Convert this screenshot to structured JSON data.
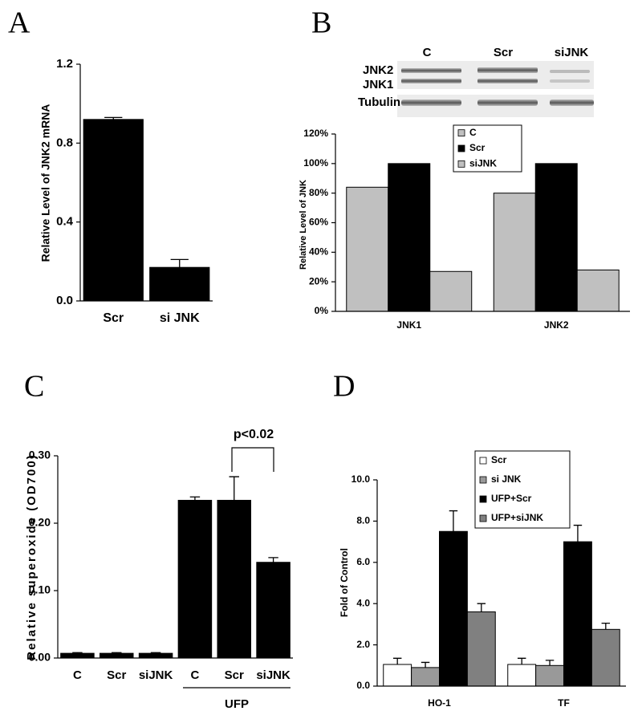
{
  "chart_data": [
    {
      "type": "bar",
      "panel": "A",
      "ylabel": "Relative Level of JNK2 mRNA",
      "categories": [
        "Scr",
        "si JNK"
      ],
      "values": [
        0.92,
        0.17
      ],
      "errors": [
        0.01,
        0.04
      ],
      "color": "#000000",
      "ylim": [
        0,
        1.2
      ],
      "yticks": [
        {
          "value": 0,
          "label": "0.0"
        },
        0.4,
        0.8,
        1.2
      ]
    },
    {
      "type": "bar",
      "panel": "B",
      "ylabel": "Relative Level of JNK",
      "blot": {
        "lanes": [
          "C",
          "Scr",
          "siJNK"
        ],
        "rows": [
          "JNK2",
          "JNK1",
          "Tubulin"
        ]
      },
      "categories": [
        "JNK1",
        "JNK2"
      ],
      "series": [
        {
          "name": "C",
          "color": "#c0c0c0",
          "values": [
            84,
            80
          ]
        },
        {
          "name": "Scr",
          "color": "#000000",
          "values": [
            100,
            100
          ]
        },
        {
          "name": "siJNK",
          "color": "#c0c0c0",
          "values": [
            27,
            28
          ]
        }
      ],
      "ylim": [
        0,
        120
      ],
      "yticks": [
        {
          "value": 0,
          "label": "0%"
        },
        {
          "value": 20,
          "label": "20%"
        },
        {
          "value": 40,
          "label": "40%"
        },
        {
          "value": 60,
          "label": "60%"
        },
        {
          "value": 80,
          "label": "80%"
        },
        {
          "value": 100,
          "label": "100%"
        },
        {
          "value": 120,
          "label": "120%"
        }
      ],
      "legend": "top-center"
    },
    {
      "type": "bar",
      "panel": "C",
      "ylabel": "Relative superoxide (OD700)",
      "categories": [
        "C",
        "Scr",
        "siJNK",
        "C",
        "Scr",
        "siJNK"
      ],
      "group_label": "UFP",
      "values": [
        0.007,
        0.007,
        0.007,
        0.234,
        0.234,
        0.142
      ],
      "errors": [
        0.001,
        0.001,
        0.001,
        0.005,
        0.035,
        0.007
      ],
      "color": "#000000",
      "annotation": "p<0.02",
      "ylim": [
        0,
        0.3
      ],
      "yticks": [
        {
          "value": 0,
          "label": "0.00"
        },
        {
          "value": 0.1,
          "label": "0.10"
        },
        {
          "value": 0.2,
          "label": "0.20"
        },
        {
          "value": 0.3,
          "label": "0.30"
        }
      ]
    },
    {
      "type": "bar",
      "panel": "D",
      "ylabel": "Fold of Control",
      "categories": [
        "HO-1",
        "TF"
      ],
      "series": [
        {
          "name": "Scr",
          "color": "#ffffff",
          "values": [
            1.05,
            1.05
          ],
          "errors": [
            0.3,
            0.3
          ]
        },
        {
          "name": "si JNK",
          "color": "#999999",
          "values": [
            0.9,
            1.0
          ],
          "errors": [
            0.25,
            0.25
          ]
        },
        {
          "name": "UFP+Scr",
          "color": "#000000",
          "values": [
            7.5,
            7.0
          ],
          "errors": [
            1.0,
            0.8
          ]
        },
        {
          "name": "UFP+siJNK",
          "color": "#808080",
          "values": [
            3.6,
            2.75
          ],
          "errors": [
            0.4,
            0.3
          ]
        }
      ],
      "ylim": [
        0,
        10
      ],
      "yticks": [
        {
          "value": 0,
          "label": "0.0"
        },
        {
          "value": 2,
          "label": "2.0"
        },
        {
          "value": 4,
          "label": "4.0"
        },
        {
          "value": 6,
          "label": "6.0"
        },
        {
          "value": 8,
          "label": "8.0"
        },
        {
          "value": 10,
          "label": "10.0"
        }
      ],
      "legend": "top-center"
    }
  ]
}
